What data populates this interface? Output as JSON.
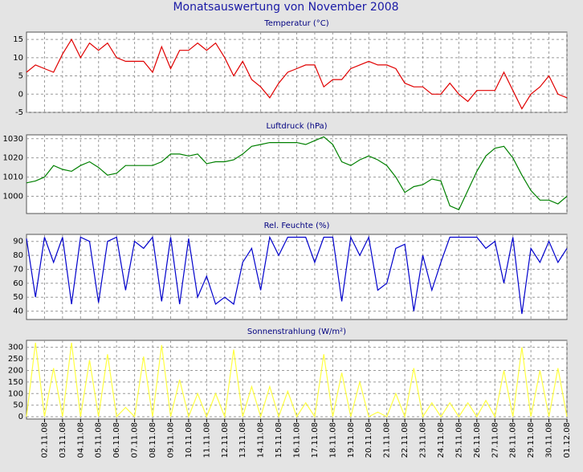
{
  "title": "Monatsauswertung von November 2008",
  "chart_data": [
    {
      "type": "line",
      "title": "Temperatur (°C)",
      "color": "#e00000",
      "grid": true,
      "xlim": [
        1,
        31
      ],
      "xticks": [
        2,
        3,
        4,
        5,
        6,
        7,
        8,
        9,
        10,
        11,
        12,
        13,
        14,
        15,
        16,
        17,
        18,
        19,
        20,
        21,
        22,
        23,
        24,
        25,
        26,
        27,
        28,
        29,
        30,
        31
      ],
      "ylim": [
        -5,
        17
      ],
      "yticks": [
        -5,
        0,
        5,
        10,
        15
      ],
      "x": [
        1,
        1.5,
        2,
        2.5,
        3,
        3.5,
        4,
        4.5,
        5,
        5.5,
        6,
        6.5,
        7,
        7.5,
        8,
        8.5,
        9,
        9.5,
        10,
        10.5,
        11,
        11.5,
        12,
        12.5,
        13,
        13.5,
        14,
        14.5,
        15,
        15.5,
        16,
        16.5,
        17,
        17.5,
        18,
        18.5,
        19,
        19.5,
        20,
        20.5,
        21,
        21.5,
        22,
        22.5,
        23,
        23.5,
        24,
        24.5,
        25,
        25.5,
        26,
        26.5,
        27,
        27.5,
        28,
        28.5,
        29,
        29.5,
        30,
        30.5,
        31
      ],
      "values": [
        6,
        8,
        7,
        6,
        11,
        15,
        10,
        14,
        12,
        14,
        10,
        9,
        9,
        9,
        6,
        13,
        7,
        12,
        12,
        14,
        12,
        14,
        10,
        5,
        9,
        4,
        2,
        -1,
        3,
        6,
        7,
        8,
        8,
        2,
        4,
        4,
        7,
        8,
        9,
        8,
        8,
        7,
        3,
        2,
        2,
        0,
        0,
        3,
        0,
        -2,
        1,
        1,
        1,
        6,
        1,
        -4,
        0,
        2,
        5,
        0,
        -1
      ]
    },
    {
      "type": "line",
      "title": "Luftdruck (hPa)",
      "color": "#008000",
      "grid": true,
      "xlim": [
        1,
        31
      ],
      "xticks": [
        2,
        3,
        4,
        5,
        6,
        7,
        8,
        9,
        10,
        11,
        12,
        13,
        14,
        15,
        16,
        17,
        18,
        19,
        20,
        21,
        22,
        23,
        24,
        25,
        26,
        27,
        28,
        29,
        30,
        31
      ],
      "ylim": [
        991,
        1032
      ],
      "yticks": [
        1000,
        1010,
        1020,
        1030
      ],
      "x": [
        1,
        1.5,
        2,
        2.5,
        3,
        3.5,
        4,
        4.5,
        5,
        5.5,
        6,
        6.5,
        7,
        7.5,
        8,
        8.5,
        9,
        9.5,
        10,
        10.5,
        11,
        11.5,
        12,
        12.5,
        13,
        13.5,
        14,
        14.5,
        15,
        15.5,
        16,
        16.5,
        17,
        17.5,
        18,
        18.5,
        19,
        19.5,
        20,
        20.5,
        21,
        21.5,
        22,
        22.5,
        23,
        23.5,
        24,
        24.5,
        25,
        25.5,
        26,
        26.5,
        27,
        27.5,
        28,
        28.5,
        29,
        29.5,
        30,
        30.5,
        31
      ],
      "values": [
        1007,
        1008,
        1010,
        1016,
        1014,
        1013,
        1016,
        1018,
        1015,
        1011,
        1012,
        1016,
        1016,
        1016,
        1016,
        1018,
        1022,
        1022,
        1021,
        1022,
        1017,
        1018,
        1018,
        1019,
        1022,
        1026,
        1027,
        1028,
        1028,
        1028,
        1028,
        1027,
        1029,
        1031,
        1027,
        1018,
        1016,
        1019,
        1021,
        1019,
        1016,
        1010,
        1002,
        1005,
        1006,
        1009,
        1008,
        995,
        993,
        1003,
        1013,
        1021,
        1025,
        1026,
        1020,
        1011,
        1003,
        998,
        998,
        996,
        1000
      ]
    },
    {
      "type": "line",
      "title": "Rel. Feuchte (%)",
      "color": "#0000cc",
      "grid": true,
      "xlim": [
        1,
        31
      ],
      "xticks": [
        2,
        3,
        4,
        5,
        6,
        7,
        8,
        9,
        10,
        11,
        12,
        13,
        14,
        15,
        16,
        17,
        18,
        19,
        20,
        21,
        22,
        23,
        24,
        25,
        26,
        27,
        28,
        29,
        30,
        31
      ],
      "ylim": [
        34,
        95
      ],
      "yticks": [
        40,
        50,
        60,
        70,
        80,
        90
      ],
      "x": [
        1,
        1.5,
        2,
        2.5,
        3,
        3.5,
        4,
        4.5,
        5,
        5.5,
        6,
        6.5,
        7,
        7.5,
        8,
        8.5,
        9,
        9.5,
        10,
        10.5,
        11,
        11.5,
        12,
        12.5,
        13,
        13.5,
        14,
        14.5,
        15,
        15.5,
        16,
        16.5,
        17,
        17.5,
        18,
        18.5,
        19,
        19.5,
        20,
        20.5,
        21,
        21.5,
        22,
        22.5,
        23,
        23.5,
        24,
        24.5,
        25,
        25.5,
        26,
        26.5,
        27,
        27.5,
        28,
        28.5,
        29,
        29.5,
        30,
        30.5,
        31
      ],
      "values": [
        92,
        50,
        93,
        75,
        93,
        45,
        93,
        90,
        46,
        90,
        93,
        55,
        90,
        85,
        93,
        47,
        93,
        45,
        92,
        50,
        65,
        45,
        50,
        45,
        75,
        85,
        55,
        93,
        80,
        93,
        93,
        93,
        75,
        93,
        93,
        47,
        93,
        80,
        93,
        55,
        60,
        85,
        88,
        40,
        80,
        55,
        75,
        93,
        93,
        93,
        93,
        85,
        90,
        60,
        93,
        38,
        85,
        75,
        90,
        75,
        85
      ]
    },
    {
      "type": "line",
      "title": "Sonnenstrahlung (W/m²)",
      "color": "#ffff40",
      "grid": true,
      "xlim": [
        1,
        31
      ],
      "xticks": [
        {
          "value": 2,
          "label": "02.11.08"
        },
        {
          "value": 3,
          "label": "03.11.08"
        },
        {
          "value": 4,
          "label": "04.11.08"
        },
        {
          "value": 5,
          "label": "05.11.08"
        },
        {
          "value": 6,
          "label": "06.11.08"
        },
        {
          "value": 7,
          "label": "07.11.08"
        },
        {
          "value": 8,
          "label": "08.11.08"
        },
        {
          "value": 9,
          "label": "09.11.08"
        },
        {
          "value": 10,
          "label": "10.11.08"
        },
        {
          "value": 11,
          "label": "11.11.08"
        },
        {
          "value": 12,
          "label": "12.11.08"
        },
        {
          "value": 13,
          "label": "13.11.08"
        },
        {
          "value": 14,
          "label": "14.11.08"
        },
        {
          "value": 15,
          "label": "15.11.08"
        },
        {
          "value": 16,
          "label": "16.11.08"
        },
        {
          "value": 17,
          "label": "17.11.08"
        },
        {
          "value": 18,
          "label": "18.11.08"
        },
        {
          "value": 19,
          "label": "19.11.08"
        },
        {
          "value": 20,
          "label": "20.11.08"
        },
        {
          "value": 21,
          "label": "21.11.08"
        },
        {
          "value": 22,
          "label": "22.11.08"
        },
        {
          "value": 23,
          "label": "23.11.08"
        },
        {
          "value": 24,
          "label": "24.11.08"
        },
        {
          "value": 25,
          "label": "25.11.08"
        },
        {
          "value": 26,
          "label": "26.11.08"
        },
        {
          "value": 27,
          "label": "27.11.08"
        },
        {
          "value": 28,
          "label": "28.11.08"
        },
        {
          "value": 29,
          "label": "29.11.08"
        },
        {
          "value": 30,
          "label": "30.11.08"
        },
        {
          "value": 31,
          "label": "01.12.08"
        }
      ],
      "ylim": [
        -10,
        330
      ],
      "yticks": [
        0,
        50,
        100,
        150,
        200,
        250,
        300
      ],
      "x": [
        1,
        1.5,
        2,
        2.5,
        3,
        3.5,
        4,
        4.5,
        5,
        5.5,
        6,
        6.5,
        7,
        7.5,
        8,
        8.5,
        9,
        9.5,
        10,
        10.5,
        11,
        11.5,
        12,
        12.5,
        13,
        13.5,
        14,
        14.5,
        15,
        15.5,
        16,
        16.5,
        17,
        17.5,
        18,
        18.5,
        19,
        19.5,
        20,
        20.5,
        21,
        21.5,
        22,
        22.5,
        23,
        23.5,
        24,
        24.5,
        25,
        25.5,
        26,
        26.5,
        27,
        27.5,
        28,
        28.5,
        29,
        29.5,
        30,
        30.5,
        31
      ],
      "values": [
        0,
        320,
        0,
        210,
        0,
        320,
        0,
        245,
        0,
        270,
        0,
        40,
        0,
        260,
        0,
        310,
        0,
        160,
        0,
        100,
        0,
        100,
        0,
        290,
        0,
        130,
        0,
        130,
        0,
        110,
        0,
        60,
        0,
        270,
        0,
        190,
        0,
        150,
        0,
        20,
        0,
        100,
        0,
        210,
        0,
        60,
        0,
        60,
        0,
        60,
        0,
        70,
        0,
        200,
        0,
        300,
        0,
        200,
        0,
        210,
        0
      ]
    }
  ]
}
